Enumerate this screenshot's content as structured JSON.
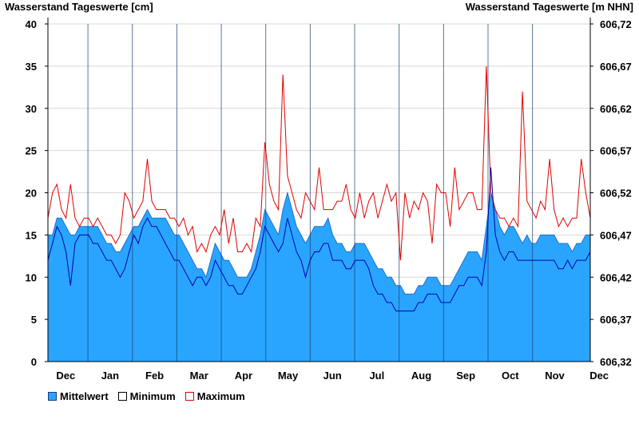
{
  "header": {
    "left_title": "Wasserstand Tageswerte [cm]",
    "right_title": "Wasserstand Tageswerte [m NHN]"
  },
  "legend": {
    "mean_label": "Mittelwert",
    "min_label": "Minimum",
    "max_label": "Maximum"
  },
  "colors": {
    "mean_fill": "#2aa5ff",
    "mean_edge": "#1f6fd0",
    "min_line": "#0000b0",
    "max_line": "#e00000",
    "grid": "#d8d8d8",
    "month_divider": "#1a3a6a"
  },
  "chart_data": {
    "type": "area",
    "title": "Wasserstand Tageswerte",
    "ylabel": "Wasserstand Tageswerte [cm]",
    "y2label": "Wasserstand Tageswerte [m NHN]",
    "ylim": [
      0,
      40
    ],
    "y_ticks": [
      0,
      5,
      10,
      15,
      20,
      25,
      30,
      35,
      40
    ],
    "y2_ticks": [
      "606,32",
      "606,37",
      "606,42",
      "606,47",
      "606,52",
      "606,57",
      "606,62",
      "606,67",
      "606,72"
    ],
    "months": [
      "Dec",
      "Jan",
      "Feb",
      "Mar",
      "Apr",
      "May",
      "Jun",
      "Jul",
      "Aug",
      "Sep",
      "Oct",
      "Nov",
      "Dec"
    ],
    "series": [
      {
        "name": "Mittelwert",
        "values": [
          15,
          15,
          17,
          17,
          16,
          15,
          15,
          16,
          16,
          16,
          16,
          16,
          15,
          14,
          14,
          13,
          13,
          14,
          15,
          16,
          16,
          17,
          18,
          17,
          17,
          17,
          17,
          16,
          15,
          15,
          14,
          13,
          12,
          11,
          11,
          10,
          12,
          14,
          13,
          12,
          12,
          11,
          10,
          10,
          10,
          11,
          13,
          15,
          18,
          17,
          16,
          15,
          18,
          20,
          18,
          16,
          15,
          14,
          15,
          16,
          16,
          16,
          17,
          15,
          14,
          14,
          13,
          13,
          14,
          14,
          14,
          13,
          12,
          11,
          11,
          10,
          10,
          9,
          9,
          8,
          8,
          8,
          9,
          9,
          10,
          10,
          10,
          9,
          9,
          9,
          10,
          11,
          12,
          13,
          13,
          13,
          12,
          16,
          20,
          18,
          16,
          15,
          16,
          16,
          15,
          14,
          15,
          14,
          14,
          15,
          15,
          15,
          15,
          14,
          14,
          14,
          13,
          14,
          14,
          15,
          15
        ]
      },
      {
        "name": "Minimum",
        "values": [
          12,
          14,
          16,
          15,
          13,
          9,
          14,
          15,
          15,
          15,
          14,
          14,
          13,
          12,
          12,
          11,
          10,
          11,
          13,
          15,
          14,
          16,
          17,
          16,
          16,
          15,
          14,
          13,
          12,
          12,
          11,
          10,
          9,
          10,
          10,
          9,
          10,
          12,
          11,
          10,
          9,
          9,
          8,
          8,
          9,
          10,
          11,
          13,
          16,
          15,
          14,
          13,
          14,
          17,
          15,
          13,
          12,
          10,
          12,
          13,
          13,
          14,
          14,
          12,
          12,
          12,
          11,
          11,
          12,
          12,
          12,
          11,
          9,
          8,
          8,
          7,
          7,
          6,
          6,
          6,
          6,
          6,
          7,
          7,
          8,
          8,
          8,
          7,
          7,
          7,
          8,
          9,
          9,
          10,
          10,
          10,
          9,
          13,
          23,
          15,
          13,
          12,
          13,
          13,
          12,
          12,
          12,
          12,
          12,
          12,
          12,
          12,
          12,
          11,
          11,
          12,
          11,
          12,
          12,
          12,
          13
        ]
      },
      {
        "name": "Maximum",
        "values": [
          17,
          20,
          21,
          18,
          17,
          21,
          17,
          16,
          17,
          17,
          16,
          17,
          16,
          15,
          15,
          14,
          15,
          20,
          19,
          17,
          18,
          19,
          24,
          19,
          18,
          18,
          18,
          17,
          17,
          16,
          17,
          15,
          16,
          13,
          14,
          13,
          15,
          16,
          15,
          18,
          14,
          17,
          13,
          13,
          14,
          13,
          17,
          16,
          26,
          21,
          19,
          18,
          34,
          22,
          20,
          18,
          17,
          20,
          19,
          18,
          23,
          18,
          18,
          18,
          19,
          19,
          21,
          18,
          17,
          20,
          17,
          19,
          20,
          17,
          19,
          21,
          19,
          20,
          12,
          20,
          17,
          19,
          18,
          20,
          19,
          14,
          21,
          20,
          20,
          16,
          23,
          18,
          19,
          20,
          20,
          18,
          18,
          35,
          20,
          18,
          17,
          17,
          16,
          17,
          16,
          32,
          19,
          18,
          17,
          19,
          18,
          24,
          18,
          16,
          17,
          16,
          17,
          17,
          24,
          20,
          17
        ]
      }
    ]
  }
}
